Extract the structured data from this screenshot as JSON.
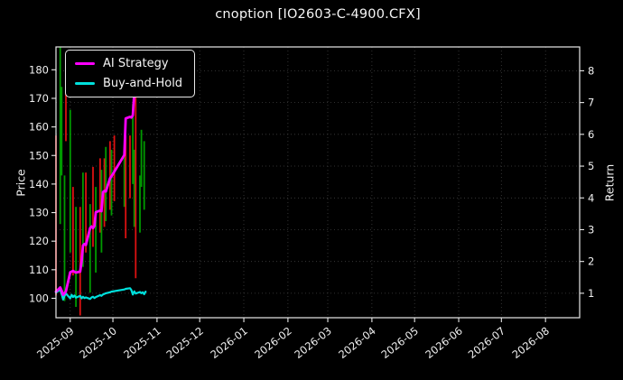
{
  "title": "cnoption [IO2603-C-4900.CFX]",
  "legend": [
    {
      "label": "AI Strategy",
      "color": "#ff00ff"
    },
    {
      "label": "Buy-and-Hold",
      "color": "#00e0dc"
    }
  ],
  "colors": {
    "background": "#000000",
    "text": "#f2f2f2",
    "plot_border": "#e8e8e8",
    "grid": "#3f3f3f",
    "candle_up": "#009a00",
    "candle_down": "#dd1111"
  },
  "chart_data": {
    "type": "candlestick+line",
    "title": "cnoption [IO2603-C-4900.CFX]",
    "grid": true,
    "legend_position": "upper left",
    "x_range": [
      "2025-08-22",
      "2026-08-25"
    ],
    "x_ticks": [
      "2025-09",
      "2025-10",
      "2025-11",
      "2025-12",
      "2026-01",
      "2026-02",
      "2026-03",
      "2026-04",
      "2026-05",
      "2026-06",
      "2026-07",
      "2026-08"
    ],
    "left_axis": {
      "label": "Price",
      "range": [
        93.2,
        188
      ],
      "ticks": [
        100,
        110,
        120,
        130,
        140,
        150,
        160,
        170,
        180
      ]
    },
    "right_axis": {
      "label": "Return",
      "range": [
        0.23,
        8.75
      ],
      "ticks": [
        1,
        2,
        3,
        4,
        5,
        6,
        7,
        8
      ]
    },
    "candles_axis": "left",
    "candles": [
      [
        "2025-08-22",
        157,
        101,
        "down"
      ],
      [
        "2025-08-25",
        188,
        126,
        "up"
      ],
      [
        "2025-08-26",
        174,
        143,
        "up"
      ],
      [
        "2025-08-28",
        143,
        99,
        "up"
      ],
      [
        "2025-08-29",
        184,
        155,
        "down"
      ],
      [
        "2025-09-01",
        166,
        116,
        "up"
      ],
      [
        "2025-09-03",
        139,
        108,
        "down"
      ],
      [
        "2025-09-05",
        132,
        97,
        "up"
      ],
      [
        "2025-09-08",
        132,
        94,
        "down"
      ],
      [
        "2025-09-10",
        144,
        111,
        "up"
      ],
      [
        "2025-09-12",
        144,
        116,
        "down"
      ],
      [
        "2025-09-15",
        133,
        102,
        "up"
      ],
      [
        "2025-09-17",
        146,
        118,
        "down"
      ],
      [
        "2025-09-19",
        139,
        109,
        "up"
      ],
      [
        "2025-09-22",
        149,
        123,
        "down"
      ],
      [
        "2025-09-23",
        145,
        116,
        "up"
      ],
      [
        "2025-09-25",
        149,
        125,
        "down"
      ],
      [
        "2025-09-26",
        153,
        127,
        "up"
      ],
      [
        "2025-09-29",
        155,
        131,
        "down"
      ],
      [
        "2025-09-30",
        152,
        129,
        "up"
      ],
      [
        "2025-10-02",
        157,
        134,
        "down"
      ],
      [
        "2025-10-09",
        152,
        132,
        "up"
      ],
      [
        "2025-10-10",
        157,
        121,
        "down"
      ],
      [
        "2025-10-13",
        157,
        135,
        "down"
      ],
      [
        "2025-10-15",
        168,
        140,
        "up"
      ],
      [
        "2025-10-16",
        152,
        125,
        "up"
      ],
      [
        "2025-10-17",
        171,
        107,
        "down"
      ],
      [
        "2025-10-20",
        143,
        123,
        "up"
      ],
      [
        "2025-10-21",
        159,
        139,
        "up"
      ],
      [
        "2025-10-23",
        155,
        131,
        "up"
      ]
    ],
    "series": [
      {
        "name": "AI Strategy",
        "axis": "right",
        "color": "#ff00ff",
        "width": 2.8,
        "points": [
          [
            "2025-08-22",
            1.05
          ],
          [
            "2025-08-25",
            1.18
          ],
          [
            "2025-08-26",
            1.08
          ],
          [
            "2025-08-27",
            0.95
          ],
          [
            "2025-08-28",
            1.0
          ],
          [
            "2025-08-29",
            1.06
          ],
          [
            "2025-09-01",
            1.66
          ],
          [
            "2025-09-03",
            1.7
          ],
          [
            "2025-09-05",
            1.65
          ],
          [
            "2025-09-08",
            1.68
          ],
          [
            "2025-09-09",
            2.0
          ],
          [
            "2025-09-10",
            2.5
          ],
          [
            "2025-09-11",
            2.55
          ],
          [
            "2025-09-12",
            2.52
          ],
          [
            "2025-09-15",
            3.05
          ],
          [
            "2025-09-16",
            3.1
          ],
          [
            "2025-09-17",
            3.05
          ],
          [
            "2025-09-18",
            3.12
          ],
          [
            "2025-09-19",
            3.55
          ],
          [
            "2025-09-22",
            3.6
          ],
          [
            "2025-09-23",
            3.58
          ],
          [
            "2025-09-24",
            4.18
          ],
          [
            "2025-09-25",
            4.22
          ],
          [
            "2025-09-26",
            4.2
          ],
          [
            "2025-09-29",
            4.62
          ],
          [
            "2025-09-30",
            4.68
          ],
          [
            "2025-10-09",
            5.35
          ],
          [
            "2025-10-10",
            6.5
          ],
          [
            "2025-10-13",
            6.55
          ],
          [
            "2025-10-14",
            6.53
          ],
          [
            "2025-10-15",
            6.6
          ],
          [
            "2025-10-16",
            7.3
          ]
        ]
      },
      {
        "name": "Buy-and-Hold",
        "axis": "right",
        "color": "#00e0dc",
        "width": 2.2,
        "points": [
          [
            "2025-08-22",
            1.02
          ],
          [
            "2025-08-25",
            1.12
          ],
          [
            "2025-08-26",
            0.97
          ],
          [
            "2025-08-27",
            0.8
          ],
          [
            "2025-08-28",
            0.92
          ],
          [
            "2025-08-29",
            0.99
          ],
          [
            "2025-09-01",
            0.84
          ],
          [
            "2025-09-02",
            0.95
          ],
          [
            "2025-09-03",
            0.88
          ],
          [
            "2025-09-04",
            0.93
          ],
          [
            "2025-09-05",
            0.86
          ],
          [
            "2025-09-08",
            0.92
          ],
          [
            "2025-09-09",
            0.84
          ],
          [
            "2025-09-10",
            0.89
          ],
          [
            "2025-09-11",
            0.85
          ],
          [
            "2025-09-12",
            0.87
          ],
          [
            "2025-09-15",
            0.82
          ],
          [
            "2025-09-16",
            0.87
          ],
          [
            "2025-09-17",
            0.89
          ],
          [
            "2025-09-18",
            0.85
          ],
          [
            "2025-09-19",
            0.88
          ],
          [
            "2025-09-22",
            0.94
          ],
          [
            "2025-09-23",
            0.92
          ],
          [
            "2025-09-24",
            0.96
          ],
          [
            "2025-09-25",
            0.98
          ],
          [
            "2025-09-26",
            1.0
          ],
          [
            "2025-09-29",
            1.03
          ],
          [
            "2025-09-30",
            1.05
          ],
          [
            "2025-10-09",
            1.12
          ],
          [
            "2025-10-10",
            1.14
          ],
          [
            "2025-10-13",
            1.16
          ],
          [
            "2025-10-14",
            1.1
          ],
          [
            "2025-10-15",
            0.96
          ],
          [
            "2025-10-16",
            1.06
          ],
          [
            "2025-10-17",
            0.99
          ],
          [
            "2025-10-20",
            1.04
          ],
          [
            "2025-10-21",
            1.0
          ],
          [
            "2025-10-22",
            1.03
          ],
          [
            "2025-10-23",
            0.97
          ],
          [
            "2025-10-24",
            1.05
          ]
        ]
      }
    ]
  }
}
